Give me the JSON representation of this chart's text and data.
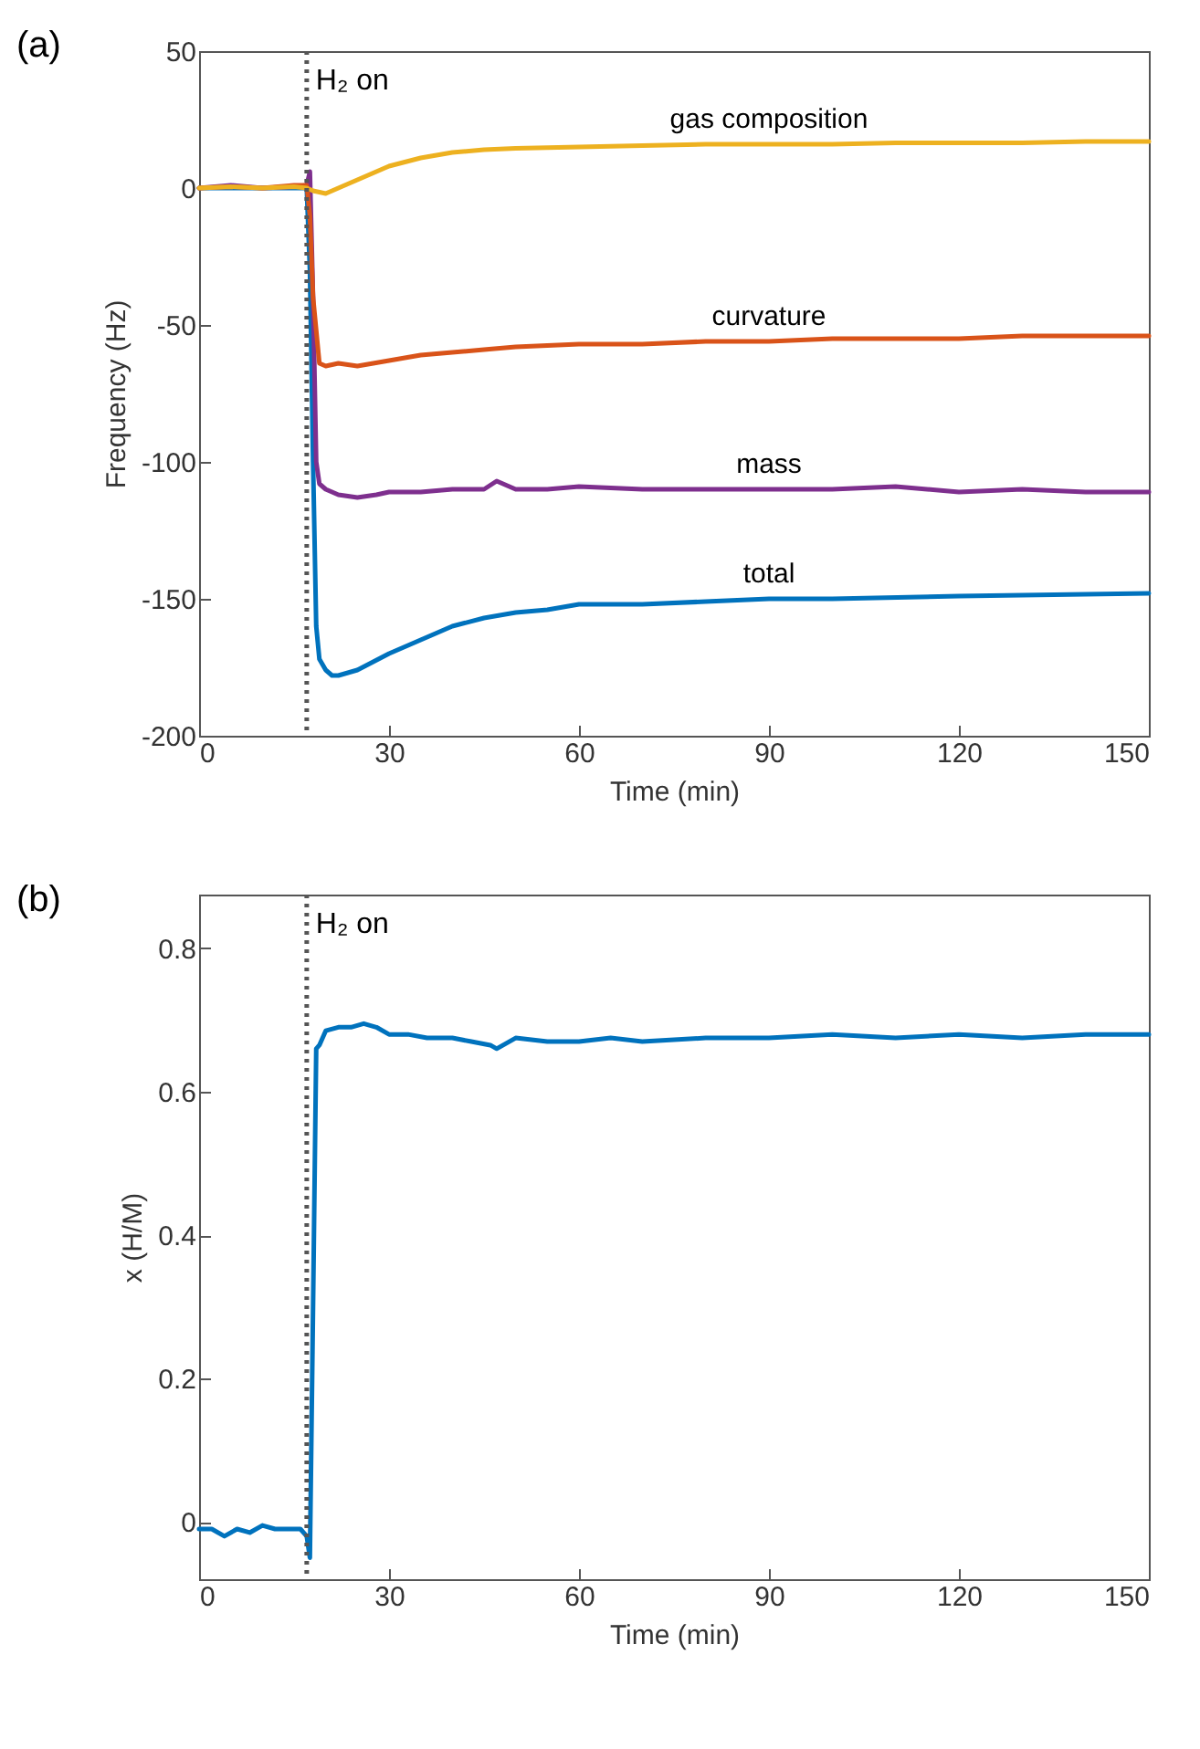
{
  "chart_data": [
    {
      "type": "line",
      "title": "(a)",
      "xlabel": "Time (min)",
      "ylabel": "Frequency (Hz)",
      "xlim": [
        0,
        150
      ],
      "xticks": [
        0,
        30,
        60,
        90,
        120,
        150
      ],
      "ylim": [
        -200,
        50
      ],
      "yticks": [
        -200,
        -150,
        -100,
        -50,
        0,
        50
      ],
      "grid": false,
      "legend": false,
      "marker": "none",
      "line_style": "solid",
      "ref_lines": [
        {
          "axis": "x",
          "value": 17,
          "label": "H₂ on",
          "color": "#555555",
          "line_style": "dotted"
        }
      ],
      "series": [
        {
          "name": "total",
          "color": "#0072bd",
          "x": [
            0,
            10,
            17,
            17.5,
            18,
            18.5,
            19,
            20,
            21,
            22,
            25,
            30,
            35,
            40,
            45,
            50,
            55,
            60,
            70,
            80,
            90,
            100,
            120,
            150
          ],
          "values": [
            0,
            0,
            0,
            -30,
            -100,
            -160,
            -172,
            -176,
            -178,
            -178,
            -176,
            -170,
            -165,
            -160,
            -157,
            -155,
            -154,
            -152,
            -152,
            -151,
            -150,
            -150,
            -149,
            -148
          ]
        },
        {
          "name": "mass",
          "color": "#7e2f8e",
          "x": [
            0,
            5,
            10,
            15,
            17,
            17.5,
            18,
            18.5,
            19,
            20,
            22,
            25,
            28,
            30,
            35,
            40,
            45,
            47,
            50,
            55,
            60,
            70,
            80,
            90,
            100,
            110,
            120,
            130,
            140,
            150
          ],
          "values": [
            0,
            1,
            0,
            0.5,
            1,
            6,
            -40,
            -100,
            -108,
            -110,
            -112,
            -113,
            -112,
            -111,
            -111,
            -110,
            -110,
            -107,
            -110,
            -110,
            -109,
            -110,
            -110,
            -110,
            -110,
            -109,
            -111,
            -110,
            -111,
            -111
          ]
        },
        {
          "name": "curvature",
          "color": "#d95319",
          "x": [
            0,
            5,
            10,
            15,
            17,
            17.5,
            18,
            19,
            20,
            22,
            25,
            30,
            35,
            40,
            45,
            50,
            60,
            70,
            80,
            90,
            100,
            110,
            120,
            130,
            140,
            150
          ],
          "values": [
            0,
            0.5,
            0,
            1,
            1,
            -10,
            -40,
            -64,
            -65,
            -64,
            -65,
            -63,
            -61,
            -60,
            -59,
            -58,
            -57,
            -57,
            -56,
            -56,
            -55,
            -55,
            -55,
            -54,
            -54,
            -54
          ]
        },
        {
          "name": "gas composition",
          "color": "#edb120",
          "x": [
            0,
            5,
            10,
            15,
            17,
            18,
            20,
            22,
            25,
            30,
            35,
            40,
            45,
            50,
            60,
            70,
            80,
            90,
            100,
            110,
            120,
            130,
            140,
            150
          ],
          "values": [
            0,
            0.5,
            0,
            0.5,
            0,
            -1,
            -2,
            0,
            3,
            8,
            11,
            13,
            14,
            14.5,
            15,
            15.5,
            16,
            16,
            16,
            16.5,
            16.5,
            16.5,
            17,
            17
          ]
        }
      ]
    },
    {
      "type": "line",
      "title": "(b)",
      "xlabel": "Time (min)",
      "ylabel": "x (H/M)",
      "xlim": [
        0,
        150
      ],
      "xticks": [
        0,
        30,
        60,
        90,
        120,
        150
      ],
      "ylim": [
        -0.08,
        0.875
      ],
      "yticks": [
        0,
        0.2,
        0.4,
        0.6,
        0.8
      ],
      "grid": false,
      "marker": "none",
      "line_style": "solid",
      "ref_lines": [
        {
          "axis": "x",
          "value": 17,
          "label": "H₂ on",
          "color": "#555555",
          "line_style": "dotted"
        }
      ],
      "series": [
        {
          "color": "#0072bd",
          "x": [
            0,
            2,
            4,
            6,
            8,
            10,
            12,
            14,
            16,
            17,
            17.5,
            18,
            18.5,
            19,
            20,
            22,
            24,
            26,
            28,
            30,
            33,
            36,
            40,
            43,
            46,
            47,
            50,
            55,
            60,
            65,
            70,
            80,
            90,
            100,
            110,
            120,
            130,
            140,
            150
          ],
          "values": [
            -0.01,
            -0.01,
            -0.02,
            -0.01,
            -0.015,
            -0.005,
            -0.01,
            -0.01,
            -0.01,
            -0.02,
            -0.05,
            0.3,
            0.66,
            0.665,
            0.685,
            0.69,
            0.69,
            0.695,
            0.69,
            0.68,
            0.68,
            0.675,
            0.675,
            0.67,
            0.665,
            0.66,
            0.675,
            0.67,
            0.67,
            0.675,
            0.67,
            0.675,
            0.675,
            0.68,
            0.675,
            0.68,
            0.675,
            0.68,
            0.68
          ]
        }
      ]
    }
  ]
}
